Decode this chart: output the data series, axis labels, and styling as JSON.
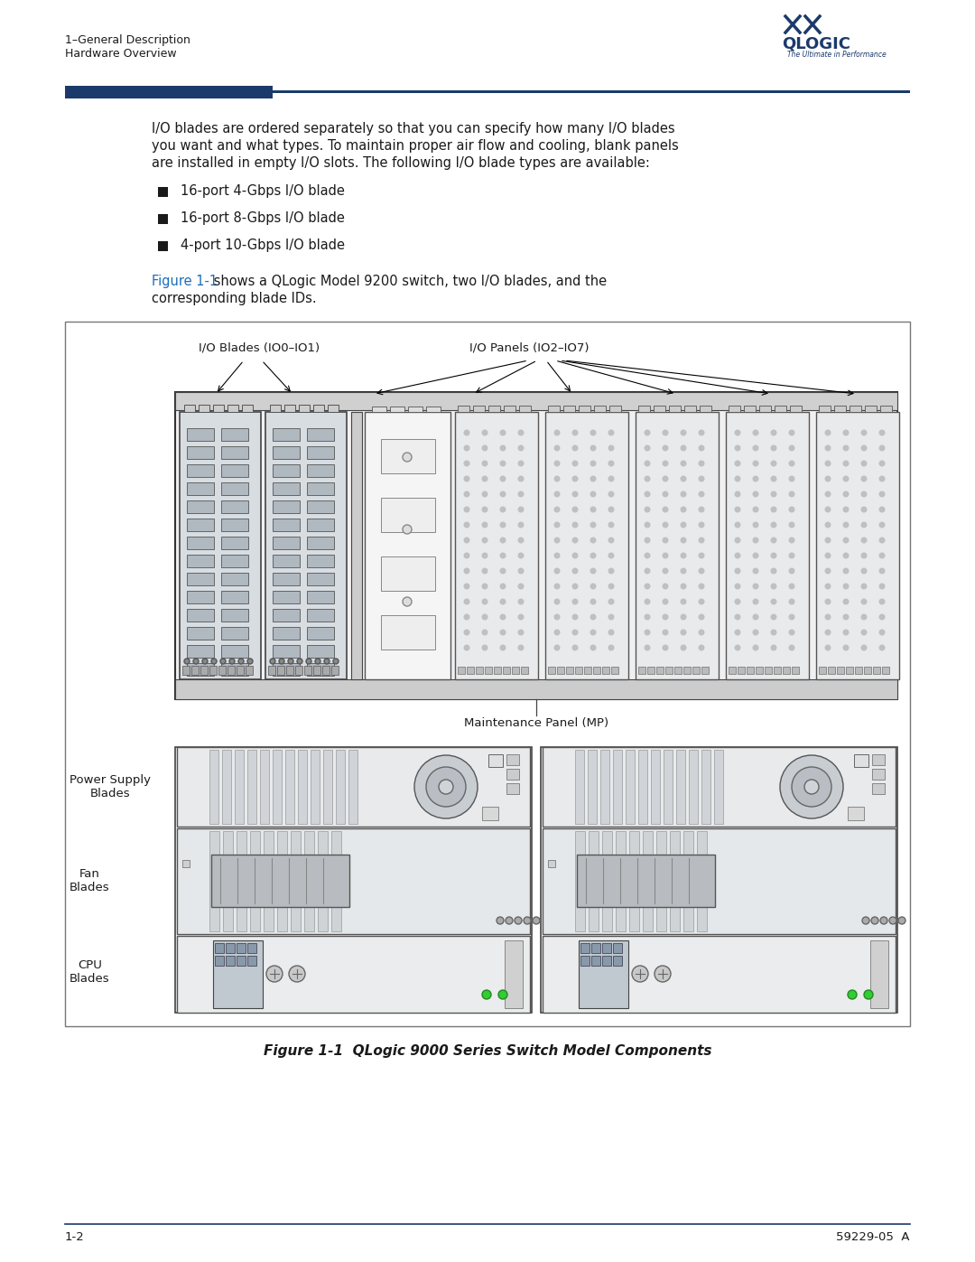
{
  "page_bg": "#ffffff",
  "header_line1": "1–General Description",
  "header_line2": "Hardware Overview",
  "body_text_lines": [
    "I/O blades are ordered separately so that you can specify how many I/O blades",
    "you want and what types. To maintain proper air flow and cooling, blank panels",
    "are installed in empty I/O slots. The following I/O blade types are available:"
  ],
  "bullet_items": [
    "16-port 4-Gbps I/O blade",
    "16-port 8-Gbps I/O blade",
    "4-port 10-Gbps I/O blade"
  ],
  "figure_ref_text": "Figure 1-1",
  "figure_ref_rest": " shows a QLogic Model 9200 switch, two I/O blades, and the",
  "figure_ref_rest2": "corresponding blade IDs.",
  "figure_caption": "Figure 1-1  QLogic 9000 Series Switch Model Components",
  "label_io_blades": "I/O Blades (IO0–IO1)",
  "label_io_panels": "I/O Panels (IO2–IO7)",
  "label_mp": "Maintenance Panel (MP)",
  "label_ps": "Power Supply\nBlades",
  "label_fan": "Fan\nBlades",
  "label_cpu": "CPU\nBlades",
  "footer_left": "1-2",
  "footer_right": "59229-05  A",
  "dark_navy": "#1b3a6b",
  "text_color": "#1a1a1a",
  "link_color": "#1a6fbb",
  "diagram_ec": "#444444",
  "blade_fc": "#d8dce0",
  "panel_fc": "#e8eaec"
}
